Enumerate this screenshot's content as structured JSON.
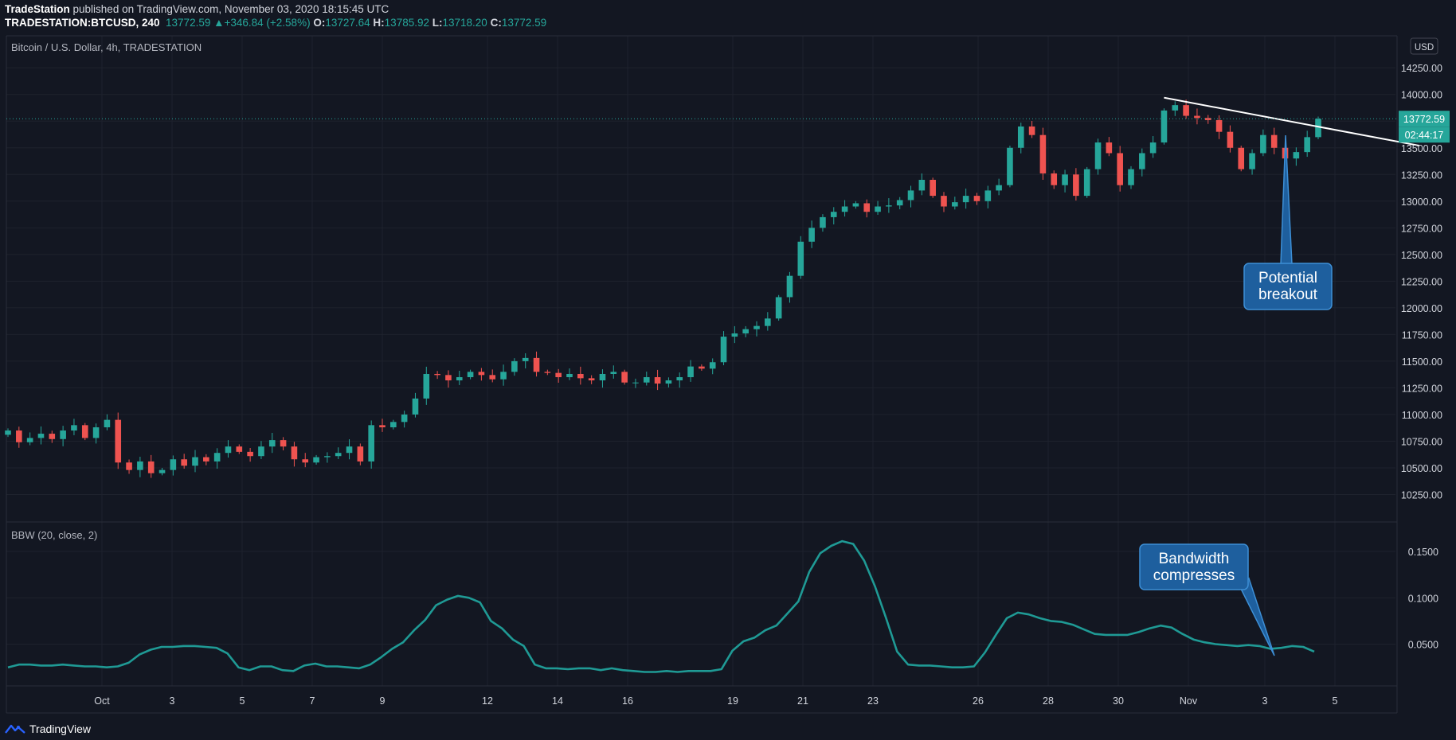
{
  "header": {
    "publisher": "TradeStation",
    "published_text": "published on TradingView.com, November 03, 2020 18:15:45 UTC",
    "symbol": "TRADESTATION:BTCUSD, 240",
    "last_price": "13772.59",
    "change_arrow": "▲",
    "change": "+346.84 (+2.58%)",
    "open_label": "O:",
    "open": "13727.64",
    "high_label": "H:",
    "high": "13785.92",
    "low_label": "L:",
    "low": "13718.20",
    "close_label": "C:",
    "close": "13772.59"
  },
  "footer": {
    "brand": "TradingView"
  },
  "colors": {
    "background": "#131722",
    "grid": "#1e222d",
    "up": "#26a69a",
    "down": "#ef5350",
    "bbw_line": "#1f9a95",
    "callout_fill": "#1e5f9e",
    "callout_border": "#3d8fd6"
  },
  "chart_data": [
    {
      "type": "candlestick",
      "title": "Bitcoin / U.S. Dollar, 4h, TRADESTATION",
      "ylabel": "USD",
      "ylim": [
        10000,
        14550
      ],
      "yticks": [
        "10250.00",
        "10500.00",
        "10750.00",
        "11000.00",
        "11250.00",
        "11500.00",
        "11750.00",
        "12000.00",
        "12250.00",
        "12500.00",
        "12750.00",
        "13000.00",
        "13250.00",
        "13500.00",
        "13750.00",
        "14000.00",
        "14250.00"
      ],
      "price_label": "13772.59",
      "countdown_label": "02:44:17",
      "x_labels": [
        "Oct",
        "3",
        "5",
        "7",
        "9",
        "12",
        "14",
        "16",
        "19",
        "21",
        "23",
        "26",
        "28",
        "30",
        "Nov",
        "3",
        "5"
      ],
      "series": [
        {
          "name": "Bitcoin / U.S. Dollar",
          "values": [
            10850,
            10740,
            10780,
            10820,
            10770,
            10850,
            10900,
            10780,
            10880,
            10950,
            10550,
            10480,
            10560,
            10450,
            10480,
            10580,
            10520,
            10600,
            10560,
            10640,
            10700,
            10650,
            10610,
            10700,
            10760,
            10700,
            10580,
            10550,
            10600,
            10610,
            10640,
            10700,
            10560,
            10900,
            10880,
            10930,
            11000,
            11150,
            11380,
            11370,
            11320,
            11350,
            11400,
            11370,
            11330,
            11400,
            11500,
            11530,
            11400,
            11390,
            11350,
            11380,
            11340,
            11320,
            11380,
            11400,
            11300,
            11300,
            11350,
            11290,
            11320,
            11350,
            11450,
            11430,
            11490,
            11730,
            11760,
            11800,
            11830,
            11900,
            12100,
            12300,
            12620,
            12750,
            12850,
            12900,
            12950,
            12980,
            12900,
            12950,
            12960,
            13010,
            13100,
            13200,
            13050,
            12950,
            12990,
            13050,
            13000,
            13100,
            13150,
            13500,
            13700,
            13620,
            13260,
            13150,
            13250,
            13050,
            13300,
            13550,
            13450,
            13150,
            13300,
            13450,
            13550,
            13850,
            13900,
            13800,
            13780,
            13760,
            13650,
            13500,
            13300,
            13450,
            13620,
            13500,
            13400,
            13460,
            13600,
            13772.59
          ]
        }
      ],
      "annotations": [
        {
          "text": "Potential breakout",
          "lines": [
            "Potential",
            "breakout"
          ]
        }
      ],
      "trendline": {
        "from": [
          105,
          13970
        ],
        "to": [
          126,
          13580
        ]
      }
    },
    {
      "type": "line",
      "title": "BBW (20, close, 2)",
      "ylim": [
        0.005,
        0.18
      ],
      "yticks": [
        "0.0500",
        "0.1000",
        "0.1500"
      ],
      "series": [
        {
          "name": "BBW (20, close, 2)",
          "values": [
            0.025,
            0.028,
            0.028,
            0.027,
            0.027,
            0.028,
            0.027,
            0.026,
            0.026,
            0.025,
            0.026,
            0.03,
            0.039,
            0.044,
            0.047,
            0.047,
            0.048,
            0.048,
            0.047,
            0.046,
            0.04,
            0.025,
            0.022,
            0.026,
            0.026,
            0.022,
            0.021,
            0.027,
            0.029,
            0.026,
            0.026,
            0.025,
            0.024,
            0.028,
            0.036,
            0.045,
            0.052,
            0.065,
            0.076,
            0.092,
            0.098,
            0.102,
            0.1,
            0.095,
            0.075,
            0.067,
            0.055,
            0.048,
            0.028,
            0.024,
            0.024,
            0.023,
            0.024,
            0.024,
            0.022,
            0.024,
            0.022,
            0.021,
            0.02,
            0.02,
            0.021,
            0.02,
            0.021,
            0.021,
            0.021,
            0.023,
            0.043,
            0.053,
            0.057,
            0.065,
            0.07,
            0.083,
            0.096,
            0.128,
            0.148,
            0.156,
            0.161,
            0.158,
            0.14,
            0.112,
            0.078,
            0.042,
            0.028,
            0.027,
            0.027,
            0.026,
            0.025,
            0.025,
            0.026,
            0.041,
            0.06,
            0.078,
            0.084,
            0.082,
            0.078,
            0.075,
            0.074,
            0.071,
            0.066,
            0.061,
            0.06,
            0.06,
            0.06,
            0.063,
            0.067,
            0.07,
            0.068,
            0.061,
            0.055,
            0.052,
            0.05,
            0.049,
            0.048,
            0.049,
            0.048,
            0.045,
            0.046,
            0.048,
            0.047,
            0.042
          ]
        }
      ],
      "annotations": [
        {
          "text": "Bandwidth compresses",
          "lines": [
            "Bandwidth",
            "compresses"
          ]
        }
      ]
    }
  ]
}
